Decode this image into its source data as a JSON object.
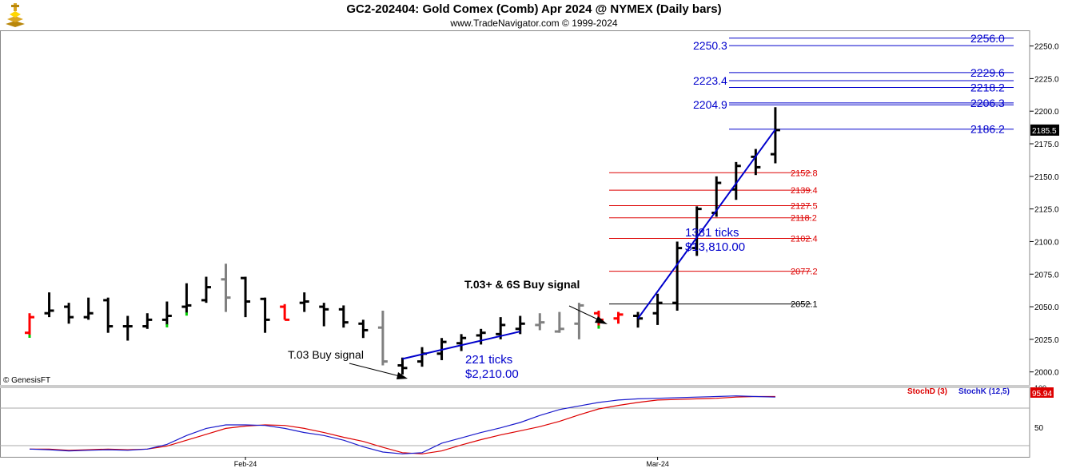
{
  "header": {
    "title": "GC2-202404:  Gold Comex (Comb) Apr 2024 @ NYMEX  (Daily bars)",
    "subtitle": "www.TradeNavigator.com © 1999-2024",
    "logo_icon": "gold-bars-icon"
  },
  "watermark": "© GenesisFT",
  "colors": {
    "up_bar": "#000000",
    "down_bar": "#ff0000",
    "neutral_bar": "#808080",
    "signal_green": "#00cc00",
    "projection_blue": "#0000cc",
    "retrace_red": "#dd0000",
    "stochD": "#dd0000",
    "stochK": "#1a1acc"
  },
  "chart_data": [
    {
      "type": "ohlc",
      "ylim": [
        1990,
        2262
      ],
      "y_ticks": [
        "2250.0",
        "2225.0",
        "2200.0",
        "2175.0",
        "2150.0",
        "2125.0",
        "2100.0",
        "2075.0",
        "2050.0",
        "2025.0",
        "2000.0"
      ],
      "x_labels": [
        {
          "label": "Feb-24",
          "bar_index": 11
        },
        {
          "label": "Mar-24",
          "bar_index": 32
        }
      ],
      "last_price": "2185.5",
      "bars": [
        {
          "o": 2030,
          "h": 2045,
          "l": 2028,
          "c": 2042,
          "color": "red",
          "dot": "green"
        },
        {
          "o": 2045,
          "h": 2061,
          "l": 2042,
          "c": 2047,
          "color": "black"
        },
        {
          "o": 2050,
          "h": 2053,
          "l": 2037,
          "c": 2042,
          "color": "black"
        },
        {
          "o": 2042,
          "h": 2057,
          "l": 2040,
          "c": 2045,
          "color": "black"
        },
        {
          "o": 2055,
          "h": 2057,
          "l": 2030,
          "c": 2035,
          "color": "black"
        },
        {
          "o": 2035,
          "h": 2043,
          "l": 2024,
          "c": 2035,
          "color": "black"
        },
        {
          "o": 2035,
          "h": 2045,
          "l": 2033,
          "c": 2040,
          "color": "black"
        },
        {
          "o": 2040,
          "h": 2054,
          "l": 2036,
          "c": 2043,
          "color": "black",
          "dot": "green"
        },
        {
          "o": 2050,
          "h": 2068,
          "l": 2045,
          "c": 2051,
          "color": "black",
          "dot": "green"
        },
        {
          "o": 2055,
          "h": 2073,
          "l": 2053,
          "c": 2065,
          "color": "black"
        },
        {
          "o": 2071,
          "h": 2083,
          "l": 2046,
          "c": 2057,
          "color": "gray"
        },
        {
          "o": 2072,
          "h": 2073,
          "l": 2042,
          "c": 2054,
          "color": "black"
        },
        {
          "o": 2056,
          "h": 2057,
          "l": 2030,
          "c": 2040,
          "color": "black"
        },
        {
          "o": 2050,
          "h": 2052,
          "l": 2040,
          "c": 2040,
          "color": "red"
        },
        {
          "o": 2053,
          "h": 2061,
          "l": 2046,
          "c": 2054,
          "color": "black"
        },
        {
          "o": 2050,
          "h": 2053,
          "l": 2035,
          "c": 2048,
          "color": "black"
        },
        {
          "o": 2048,
          "h": 2051,
          "l": 2034,
          "c": 2038,
          "color": "black"
        },
        {
          "o": 2037,
          "h": 2040,
          "l": 2026,
          "c": 2032,
          "color": "black"
        },
        {
          "o": 2034,
          "h": 2047,
          "l": 2005,
          "c": 2008,
          "color": "gray"
        },
        {
          "o": 2005,
          "h": 2011,
          "l": 1998,
          "c": 2003,
          "color": "black"
        },
        {
          "o": 2008,
          "h": 2019,
          "l": 2004,
          "c": 2014,
          "color": "black"
        },
        {
          "o": 2014,
          "h": 2026,
          "l": 2009,
          "c": 2023,
          "color": "black"
        },
        {
          "o": 2022,
          "h": 2029,
          "l": 2016,
          "c": 2026,
          "color": "black"
        },
        {
          "o": 2028,
          "h": 2033,
          "l": 2021,
          "c": 2030,
          "color": "black"
        },
        {
          "o": 2029,
          "h": 2042,
          "l": 2025,
          "c": 2036,
          "color": "black"
        },
        {
          "o": 2033,
          "h": 2043,
          "l": 2029,
          "c": 2037,
          "color": "black"
        },
        {
          "o": 2036,
          "h": 2045,
          "l": 2032,
          "c": 2038,
          "color": "gray"
        },
        {
          "o": 2031,
          "h": 2046,
          "l": 2030,
          "c": 2033,
          "color": "gray"
        },
        {
          "o": 2037,
          "h": 2053,
          "l": 2025,
          "c": 2051,
          "color": "gray"
        },
        {
          "o": 2045,
          "h": 2047,
          "l": 2035,
          "c": 2040,
          "color": "red",
          "dot": "green"
        },
        {
          "o": 2041,
          "h": 2046,
          "l": 2037,
          "c": 2044,
          "color": "red"
        },
        {
          "o": 2043,
          "h": 2046,
          "l": 2034,
          "c": 2041,
          "color": "black"
        },
        {
          "o": 2045,
          "h": 2060,
          "l": 2036,
          "c": 2053,
          "color": "black"
        },
        {
          "o": 2053,
          "h": 2100,
          "l": 2047,
          "c": 2095,
          "color": "black"
        },
        {
          "o": 2095,
          "h": 2127,
          "l": 2089,
          "c": 2125,
          "color": "black"
        },
        {
          "o": 2122,
          "h": 2150,
          "l": 2119,
          "c": 2145,
          "color": "black"
        },
        {
          "o": 2140,
          "h": 2161,
          "l": 2132,
          "c": 2158,
          "color": "black"
        },
        {
          "o": 2165,
          "h": 2171,
          "l": 2151,
          "c": 2157,
          "color": "black"
        },
        {
          "o": 2167,
          "h": 2203,
          "l": 2160,
          "c": 2185.5,
          "color": "black"
        }
      ],
      "blue_levels": [
        {
          "value": 2256.0,
          "label": "2256.0",
          "side": "right"
        },
        {
          "value": 2250.3,
          "label": "2250.3",
          "side": "left"
        },
        {
          "value": 2229.6,
          "label": "2229.6",
          "side": "right"
        },
        {
          "value": 2223.4,
          "label": "2223.4",
          "side": "left"
        },
        {
          "value": 2218.2,
          "label": "2218.2",
          "side": "right"
        },
        {
          "value": 2206.3,
          "label": "2206.3",
          "side": "right"
        },
        {
          "value": 2204.9,
          "label": "2204.9",
          "side": "left"
        },
        {
          "value": 2186.2,
          "label": "2186.2",
          "side": "right"
        }
      ],
      "red_levels": [
        {
          "value": 2152.8,
          "label": "2152.8"
        },
        {
          "value": 2139.4,
          "label": "2139.4"
        },
        {
          "value": 2127.5,
          "label": "2127.5"
        },
        {
          "value": 2118.2,
          "label": "2118.2"
        },
        {
          "value": 2102.4,
          "label": "2102.4"
        },
        {
          "value": 2077.2,
          "label": "2077.2"
        }
      ],
      "black_level": {
        "value": 2052.1,
        "label": "2052.1"
      },
      "trend_lines": [
        {
          "from_bar": 19,
          "from_price": 2010,
          "to_bar": 25,
          "to_price": 2031
        },
        {
          "from_bar": 31,
          "from_price": 2041,
          "to_bar": 38,
          "to_price": 2186
        }
      ],
      "annotations": {
        "signal1": "T.03 Buy signal",
        "signal2": "T.03+ & 6S Buy signal",
        "move1_ticks": "221 ticks",
        "move1_value": "$2,210.00",
        "move2_ticks": "1381 ticks",
        "move2_value": "$13,810.00"
      }
    },
    {
      "type": "line",
      "ylim": [
        0,
        100
      ],
      "y_ticks": [
        "100",
        "50"
      ],
      "series": [
        {
          "name": "StochD (3)",
          "color": "#dd0000",
          "values": [
            9,
            9,
            7,
            8,
            9,
            8,
            9,
            14,
            24,
            34,
            44,
            48,
            50,
            49,
            44,
            37,
            29,
            22,
            12,
            3,
            1,
            6,
            16,
            25,
            33,
            40,
            47,
            56,
            67,
            77,
            83,
            88,
            92,
            93,
            94,
            95,
            97,
            98,
            98
          ]
        },
        {
          "name": "StochK (12,5)",
          "color": "#1a1acc",
          "values": [
            9,
            8,
            6,
            7,
            8,
            7,
            9,
            17,
            32,
            44,
            50,
            50,
            49,
            44,
            37,
            32,
            24,
            13,
            4,
            1,
            3,
            19,
            28,
            37,
            45,
            54,
            66,
            76,
            82,
            88,
            92,
            94,
            95,
            96,
            97,
            98,
            99,
            98,
            97
          ]
        }
      ],
      "last_value": "95.94"
    }
  ]
}
